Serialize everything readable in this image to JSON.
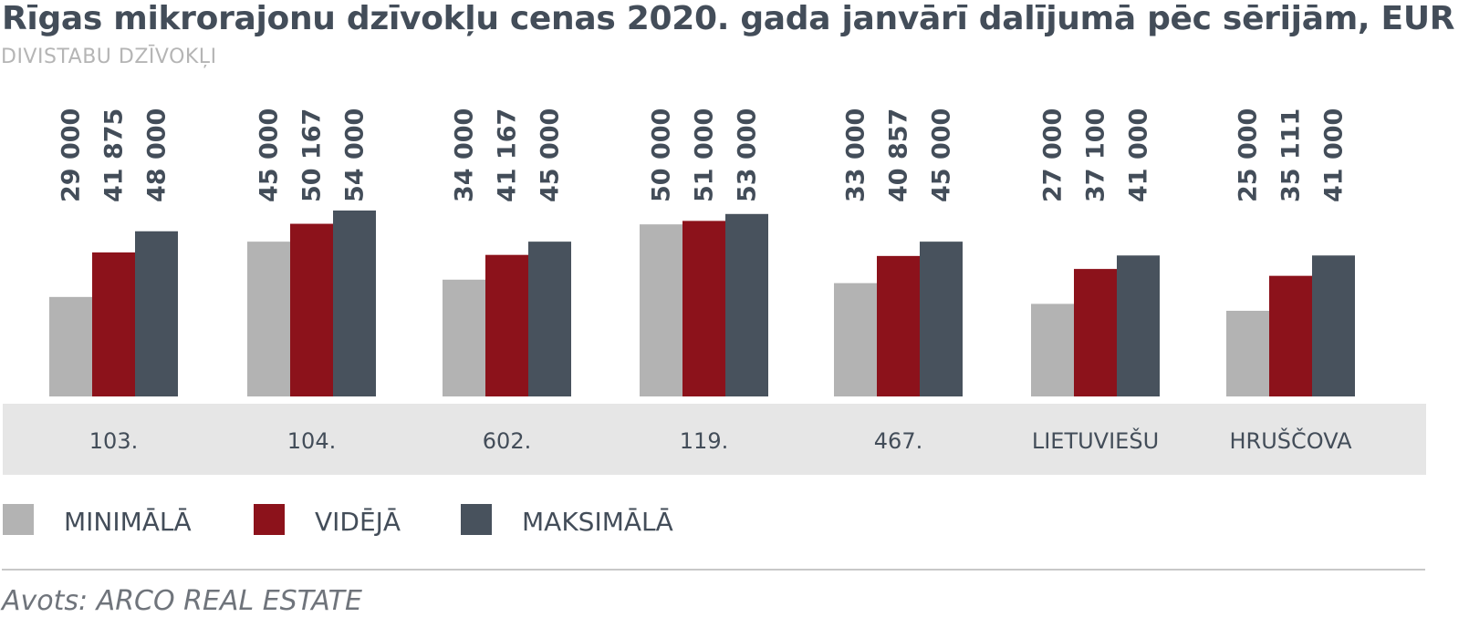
{
  "title": "Rīgas mikrorajonu dzīvokļu cenas 2020. gada janvārī dalījumā pēc sērijām, EUR",
  "subtitle": "DIVISTABU DZĪVOKĻI",
  "source": "Avots: ARCO REAL ESTATE",
  "colors": {
    "min": "#b3b3b3",
    "avg": "#8c121b",
    "max": "#48525d",
    "label_band": "#e6e6e6",
    "text": "#434d59"
  },
  "chart_data": {
    "type": "bar",
    "title": "Rīgas mikrorajonu dzīvokļu cenas 2020. gada janvārī dalījumā pēc sērijām, EUR",
    "subtitle": "DIVISTABU DZĪVOKĻI",
    "categories": [
      "103.",
      "104.",
      "602.",
      "119.",
      "467.",
      "LIETUVIEŠU",
      "HRUŠČOVA"
    ],
    "series": [
      {
        "name": "MINIMĀLĀ",
        "values": [
          29000,
          45000,
          34000,
          50000,
          33000,
          27000,
          25000
        ]
      },
      {
        "name": "VIDĒJĀ",
        "values": [
          41875,
          50167,
          41167,
          51000,
          40857,
          37100,
          35111
        ]
      },
      {
        "name": "MAKSIMĀLĀ",
        "values": [
          48000,
          54000,
          45000,
          53000,
          45000,
          41000,
          41000
        ]
      }
    ],
    "value_labels": [
      [
        "29 000",
        "41 875",
        "48 000"
      ],
      [
        "45 000",
        "50 167",
        "54 000"
      ],
      [
        "34 000",
        "41 167",
        "45 000"
      ],
      [
        "50 000",
        "51 000",
        "53 000"
      ],
      [
        "33 000",
        "40 857",
        "45 000"
      ],
      [
        "27 000",
        "37 100",
        "41 000"
      ],
      [
        "25 000",
        "35 111",
        "41 000"
      ]
    ],
    "ylim": [
      0,
      54000
    ],
    "grid": false,
    "legend": "bottom-left"
  }
}
